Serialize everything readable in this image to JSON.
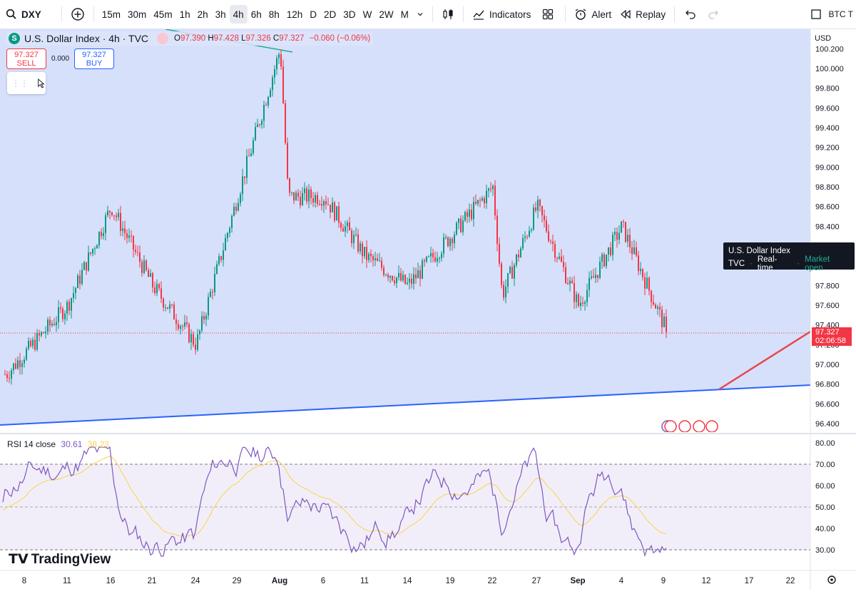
{
  "toolbar": {
    "symbol": "DXY",
    "timeframes": [
      "15m",
      "30m",
      "45m",
      "1h",
      "2h",
      "3h",
      "4h",
      "6h",
      "8h",
      "12h",
      "D",
      "2D",
      "3D",
      "W",
      "2W",
      "M"
    ],
    "active_timeframe": "4h",
    "indicators_label": "Indicators",
    "alert_label": "Alert",
    "replay_label": "Replay",
    "right_symbol": "BTC T"
  },
  "legend": {
    "title": "U.S. Dollar Index · 4h · TVC",
    "o_label": "O",
    "o_value": "97.390",
    "h_label": "H",
    "h_value": "97.428",
    "l_label": "L",
    "l_value": "97.326",
    "c_label": "C",
    "c_value": "97.327",
    "change": "−0.060 (−0.06%)"
  },
  "trade": {
    "sell_price": "97.327",
    "sell_label": "SELL",
    "spread": "0.000",
    "buy_price": "97.327",
    "buy_label": "BUY"
  },
  "currency": "USD",
  "tooltip": {
    "name": "U.S. Dollar Index",
    "source": "TVC",
    "feed": "Real-time",
    "status": "Market open"
  },
  "price_tag": {
    "price": "97.327",
    "countdown": "02:06:58"
  },
  "price_axis": [
    "100.200",
    "100.000",
    "99.800",
    "99.600",
    "99.400",
    "99.200",
    "99.000",
    "98.800",
    "98.600",
    "98.400",
    "97.800",
    "97.600",
    "97.400",
    "97.200",
    "97.000",
    "96.800",
    "96.600",
    "96.400"
  ],
  "rsi": {
    "label": "RSI 14 close",
    "value": "30.61",
    "ma_value": "38.23",
    "axis": [
      "80.00",
      "70.00",
      "60.00",
      "50.00",
      "40.00",
      "30.00"
    ]
  },
  "time_axis": [
    "8",
    "11",
    "16",
    "21",
    "24",
    "29",
    "Aug",
    "6",
    "11",
    "14",
    "19",
    "22",
    "27",
    "Sep",
    "4",
    "9",
    "12",
    "17",
    "22"
  ],
  "brand": "TradingView",
  "colors": {
    "up": "#089981",
    "down": "#f23645",
    "channel_fill": "#d6e0fb",
    "trendline": "#2962ff",
    "rsi_line": "#7e57c2",
    "rsi_ma": "#f7d44a"
  },
  "chart_data": {
    "type": "candlestick",
    "symbol": "U.S. Dollar Index",
    "interval": "4h",
    "x_period": "Jul 8 – Sep 9",
    "last_close": 97.327,
    "approx_path": [
      {
        "x": "8",
        "y": 96.9
      },
      {
        "x": "11",
        "y": 97.6
      },
      {
        "x": "16",
        "y": 98.6
      },
      {
        "x": "21",
        "y": 97.8
      },
      {
        "x": "24",
        "y": 97.2
      },
      {
        "x": "29",
        "y": 98.7
      },
      {
        "x": "Aug",
        "y": 100.2
      },
      {
        "x": "Aug",
        "y": 98.7
      },
      {
        "x": "6",
        "y": 98.7
      },
      {
        "x": "11",
        "y": 98.1
      },
      {
        "x": "14",
        "y": 97.8
      },
      {
        "x": "19",
        "y": 98.3
      },
      {
        "x": "22",
        "y": 98.8
      },
      {
        "x": "22",
        "y": 97.7
      },
      {
        "x": "27",
        "y": 98.6
      },
      {
        "x": "Sep",
        "y": 97.6
      },
      {
        "x": "4",
        "y": 98.4
      },
      {
        "x": "9",
        "y": 97.33
      }
    ],
    "ylim": [
      96.4,
      100.2
    ],
    "rsi_period": 14,
    "rsi_last": 30.61,
    "rsi_ma_last": 38.23
  }
}
